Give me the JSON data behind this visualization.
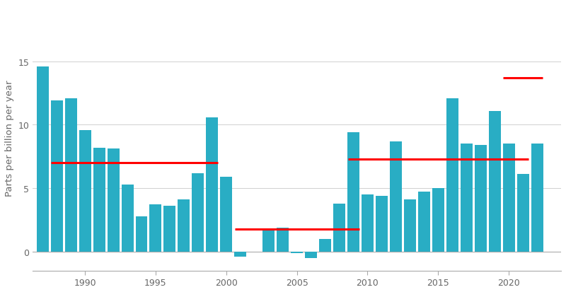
{
  "years": [
    1987,
    1988,
    1989,
    1990,
    1991,
    1992,
    1993,
    1994,
    1995,
    1996,
    1997,
    1998,
    1999,
    2000,
    2001,
    2002,
    2003,
    2004,
    2005,
    2006,
    2007,
    2008,
    2009,
    2010,
    2011,
    2012,
    2013,
    2014,
    2015,
    2016,
    2017,
    2018,
    2019,
    2020,
    2021,
    2022
  ],
  "values": [
    14.6,
    11.9,
    12.1,
    9.6,
    8.2,
    8.1,
    5.3,
    2.8,
    3.7,
    3.6,
    4.1,
    6.2,
    10.6,
    5.9,
    -0.4,
    0.0,
    1.85,
    1.9,
    -0.15,
    -0.5,
    1.0,
    3.8,
    9.4,
    4.5,
    4.4,
    8.7,
    4.1,
    4.7,
    5.0,
    12.1,
    8.5,
    8.4,
    11.1,
    8.5,
    6.1,
    8.5
  ],
  "bar_color": "#29adc4",
  "red_lines": [
    {
      "x_start": 1987.6,
      "x_end": 1999.4,
      "y": 7.0
    },
    {
      "x_start": 2000.6,
      "x_end": 2009.4,
      "y": 1.75
    },
    {
      "x_start": 2008.6,
      "x_end": 2021.4,
      "y": 7.3
    },
    {
      "x_start": 2019.6,
      "x_end": 2022.4,
      "y": 13.7
    }
  ],
  "ylabel": "Parts per billion per year",
  "yticks": [
    0,
    5,
    10,
    15
  ],
  "xtick_years": [
    1990,
    1995,
    2000,
    2005,
    2010,
    2015,
    2020
  ],
  "ylim": [
    -1.5,
    19.5
  ],
  "xlim": [
    1986.3,
    2023.7
  ],
  "background_color": "#ffffff",
  "grid_color": "#d0d0d0"
}
